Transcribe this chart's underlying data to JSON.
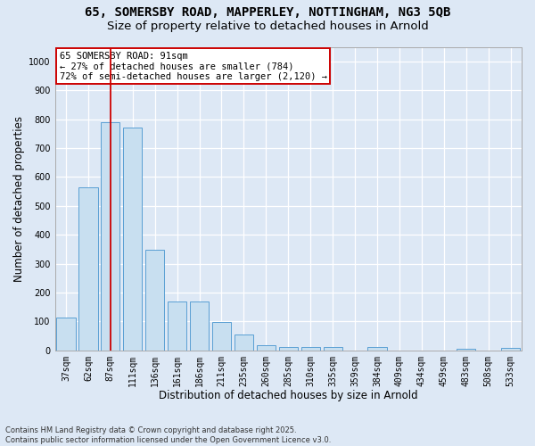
{
  "title_line1": "65, SOMERSBY ROAD, MAPPERLEY, NOTTINGHAM, NG3 5QB",
  "title_line2": "Size of property relative to detached houses in Arnold",
  "xlabel": "Distribution of detached houses by size in Arnold",
  "ylabel": "Number of detached properties",
  "categories": [
    "37sqm",
    "62sqm",
    "87sqm",
    "111sqm",
    "136sqm",
    "161sqm",
    "186sqm",
    "211sqm",
    "235sqm",
    "260sqm",
    "285sqm",
    "310sqm",
    "335sqm",
    "359sqm",
    "384sqm",
    "409sqm",
    "434sqm",
    "459sqm",
    "483sqm",
    "508sqm",
    "533sqm"
  ],
  "values": [
    112,
    563,
    790,
    770,
    348,
    168,
    168,
    98,
    55,
    18,
    12,
    12,
    10,
    0,
    10,
    0,
    0,
    0,
    5,
    0,
    8
  ],
  "bar_color": "#c8dff0",
  "bar_edge_color": "#5a9fd4",
  "bg_color": "#dde8f5",
  "grid_color": "#ffffff",
  "vline_x": 2,
  "vline_color": "#cc0000",
  "annotation_text": "65 SOMERSBY ROAD: 91sqm\n← 27% of detached houses are smaller (784)\n72% of semi-detached houses are larger (2,120) →",
  "annotation_box_edge": "#cc0000",
  "ylim": [
    0,
    1050
  ],
  "yticks": [
    0,
    100,
    200,
    300,
    400,
    500,
    600,
    700,
    800,
    900,
    1000
  ],
  "footnote": "Contains HM Land Registry data © Crown copyright and database right 2025.\nContains public sector information licensed under the Open Government Licence v3.0.",
  "title1_fontsize": 10,
  "title2_fontsize": 9.5,
  "axis_label_fontsize": 8.5,
  "tick_fontsize": 7,
  "annotation_fontsize": 7.5,
  "footnote_fontsize": 6
}
